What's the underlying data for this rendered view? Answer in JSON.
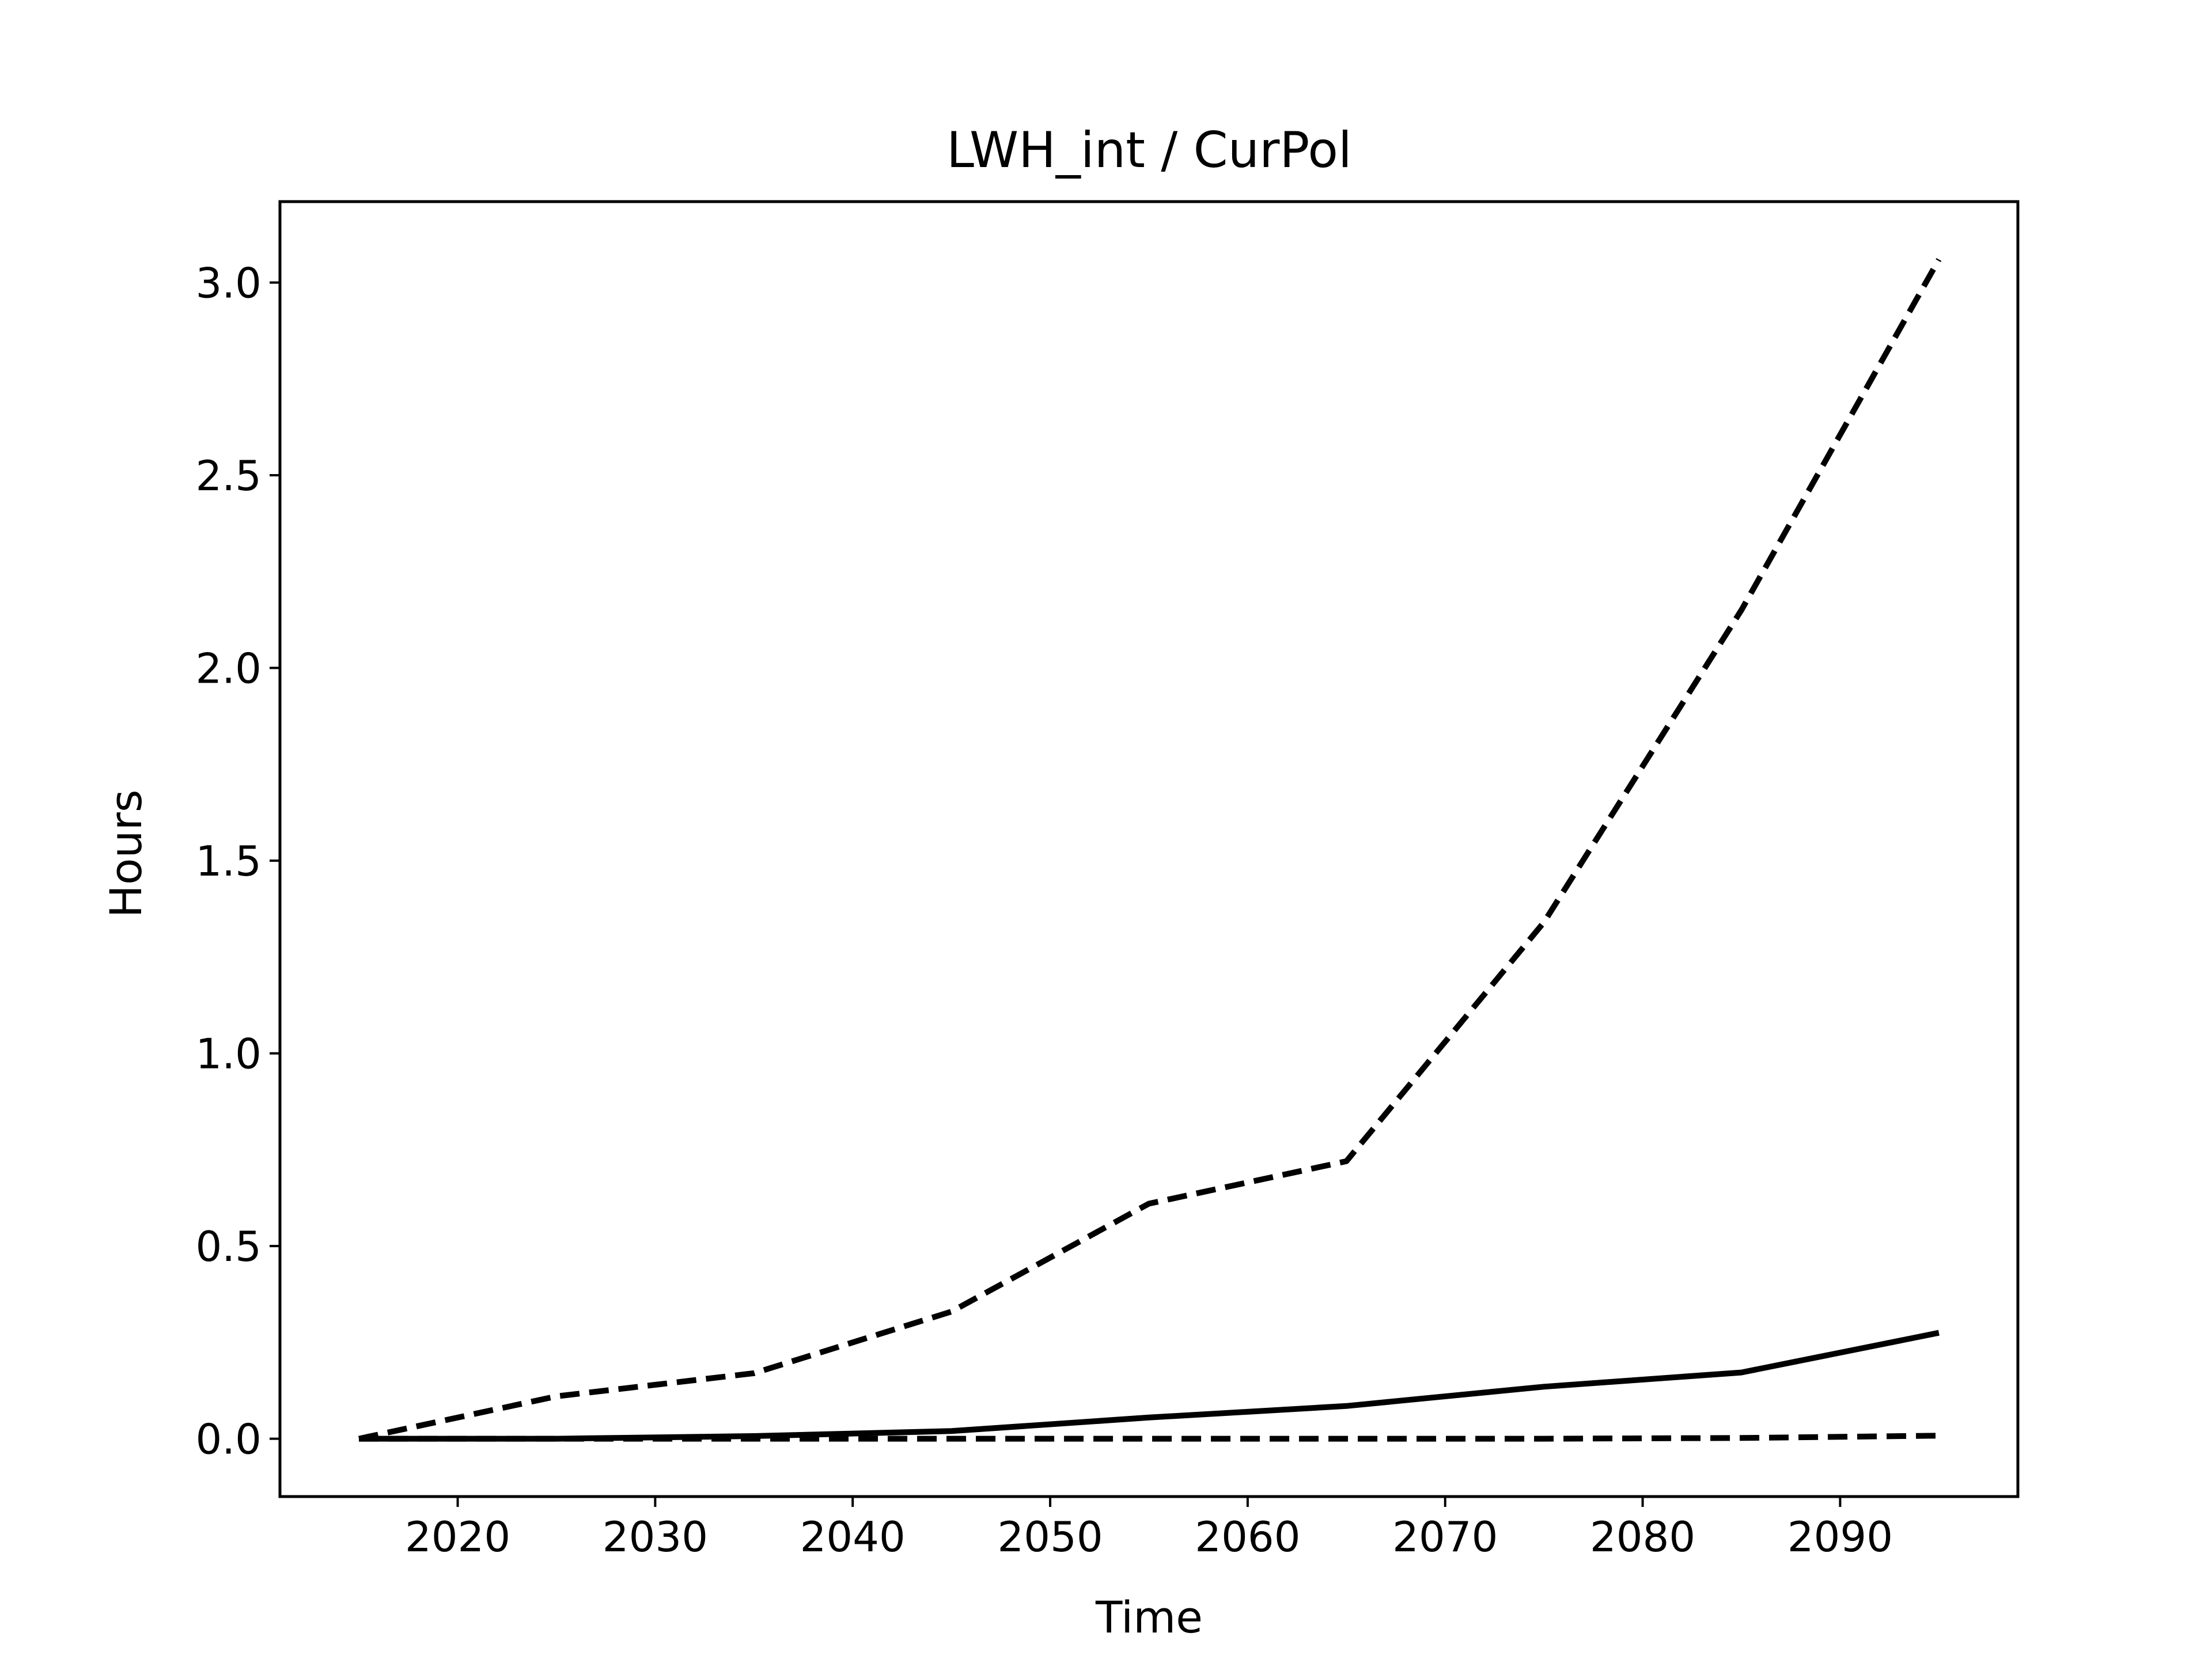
{
  "chart_data": {
    "type": "line",
    "title": "LWH_int / CurPol",
    "xlabel": "Time",
    "ylabel": "Hours",
    "xlim": [
      2011,
      2099
    ],
    "ylim": [
      -0.15,
      3.21
    ],
    "xticks": [
      2020,
      2030,
      2040,
      2050,
      2060,
      2070,
      2080,
      2090
    ],
    "yticks": [
      0.0,
      0.5,
      1.0,
      1.5,
      2.0,
      2.5,
      3.0
    ],
    "ytick_labels": [
      "0.0",
      "0.5",
      "1.0",
      "1.5",
      "2.0",
      "2.5",
      "3.0"
    ],
    "grid": false,
    "line_color": "#000000",
    "x": [
      2015,
      2025,
      2035,
      2045,
      2055,
      2065,
      2075,
      2085,
      2095
    ],
    "series": [
      {
        "style": "dashed",
        "values": [
          0.0,
          0.11,
          0.17,
          0.33,
          0.61,
          0.72,
          1.34,
          2.15,
          3.06
        ]
      },
      {
        "style": "solid",
        "values": [
          0.0,
          0.0,
          0.007,
          0.02,
          0.055,
          0.085,
          0.135,
          0.172,
          0.275
        ]
      },
      {
        "style": "dashed",
        "values": [
          0.0,
          0.0,
          0.0,
          0.0,
          0.0,
          0.0,
          0.0,
          0.002,
          0.008
        ]
      }
    ]
  }
}
